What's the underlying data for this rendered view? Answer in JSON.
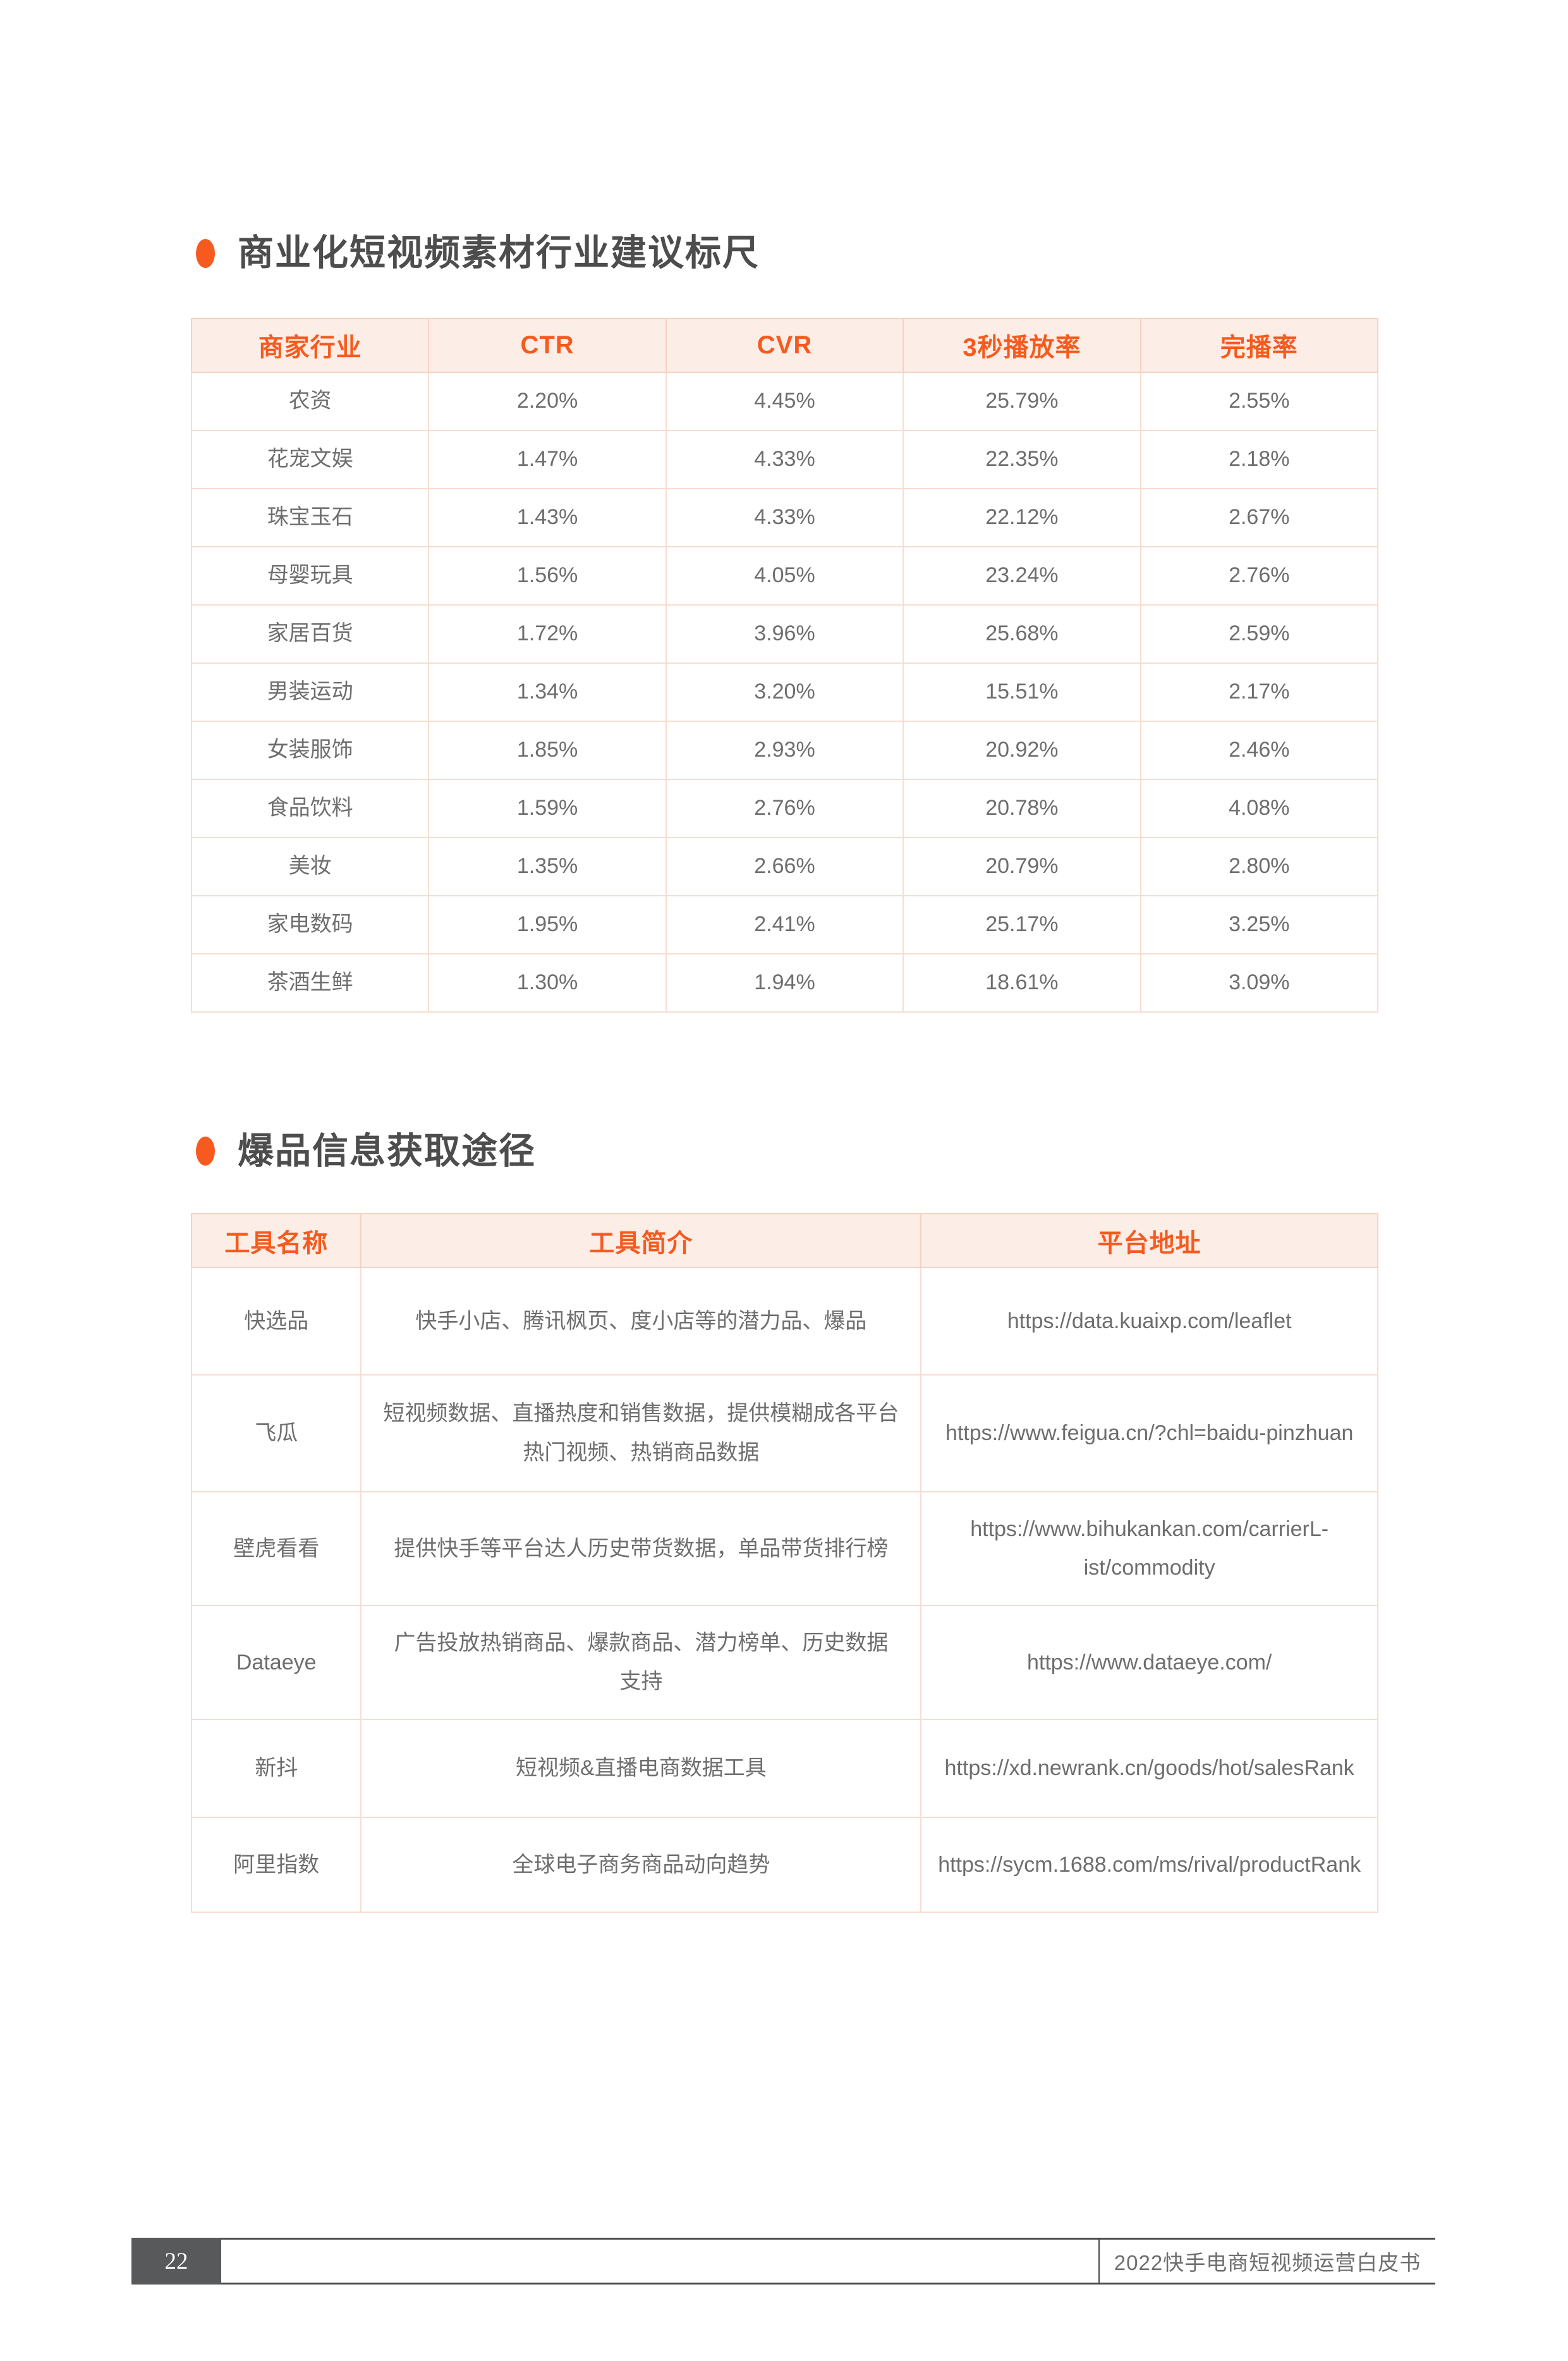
{
  "colors": {
    "accent_orange": "#F75A1E",
    "table_header_bg": "#FCEDE6",
    "table_border": "#F6D2C3",
    "heading_text": "#4D4D4D",
    "cell_text": "#6E6E6E",
    "footer_badge_bg": "#58595B",
    "footer_badge_text": "#FFFFFF"
  },
  "sections": [
    {
      "heading": "商业化短视频素材行业建议标尺",
      "table": {
        "headers": [
          "商家行业",
          "CTR",
          "CVR",
          "3秒播放率",
          "完播率"
        ],
        "rows": [
          [
            "农资",
            "2.20%",
            "4.45%",
            "25.79%",
            "2.55%"
          ],
          [
            "花宠文娱",
            "1.47%",
            "4.33%",
            "22.35%",
            "2.18%"
          ],
          [
            "珠宝玉石",
            "1.43%",
            "4.33%",
            "22.12%",
            "2.67%"
          ],
          [
            "母婴玩具",
            "1.56%",
            "4.05%",
            "23.24%",
            "2.76%"
          ],
          [
            "家居百货",
            "1.72%",
            "3.96%",
            "25.68%",
            "2.59%"
          ],
          [
            "男装运动",
            "1.34%",
            "3.20%",
            "15.51%",
            "2.17%"
          ],
          [
            "女装服饰",
            "1.85%",
            "2.93%",
            "20.92%",
            "2.46%"
          ],
          [
            "食品饮料",
            "1.59%",
            "2.76%",
            "20.78%",
            "4.08%"
          ],
          [
            "美妆",
            "1.35%",
            "2.66%",
            "20.79%",
            "2.80%"
          ],
          [
            "家电数码",
            "1.95%",
            "2.41%",
            "25.17%",
            "3.25%"
          ],
          [
            "茶酒生鲜",
            "1.30%",
            "1.94%",
            "18.61%",
            "3.09%"
          ]
        ]
      }
    },
    {
      "heading": "爆品信息获取途径",
      "table": {
        "headers": [
          "工具名称",
          "工具简介",
          "平台地址"
        ],
        "rows": [
          [
            "快选品",
            "快手小店、腾讯枫页、度小店等的潜力品、爆品",
            "https://data.kuaixp.com/leaflet"
          ],
          [
            "飞瓜",
            "短视频数据、直播热度和销售数据，提供模糊成各平台\n热门视频、热销商品数据",
            "https://www.feigua.cn/?chl=baidu-pinzhuan"
          ],
          [
            "壁虎看看",
            "提供快手等平台达人历史带货数据，单品带货排行榜",
            "https://www.bihukankan.com/carrierL-\nist/commodity"
          ],
          [
            "Dataeye",
            "广告投放热销商品、爆款商品、潜力榜单、历史数据\n支持",
            "https://www.dataeye.com/"
          ],
          [
            "新抖",
            "短视频&直播电商数据工具",
            "https://xd.newrank.cn/goods/hot/salesRank"
          ],
          [
            "阿里指数",
            "全球电子商务商品动向趋势",
            "https://sycm.1688.com/ms/rival/productRank"
          ]
        ]
      }
    }
  ],
  "footer": {
    "page_number": "22",
    "text": "2022快手电商短视频运营白皮书"
  }
}
